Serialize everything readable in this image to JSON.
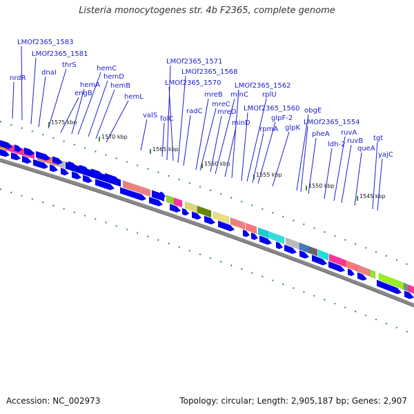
{
  "title": "Listeria monocytogenes str. 4b F2365, complete genome",
  "footer": {
    "accession": "Accession: NC_002973",
    "summary": "Topology: circular; Length: 2,905,187 bp; Genes: 2,907"
  },
  "scale_labels": [
    "1575 kbp",
    "1570 kbp",
    "1565 kbp",
    "1560 kbp",
    "1555 kbp",
    "1550 kbp",
    "1545 kbp"
  ],
  "gene_labels": [
    "LMOf2365_1583",
    "LMOf2365_1581",
    "nrdR",
    "dnaI",
    "thrS",
    "engB",
    "hemC",
    "hemA",
    "hemD",
    "hemB",
    "hemL",
    "valS",
    "folC",
    "LMOf2365_1571",
    "LMOf2365_1568",
    "LMOf2365_1570",
    "radC",
    "mreB",
    "mreC",
    "minC",
    "mreD",
    "minD",
    "LMOf2365_1562",
    "rplU",
    "LMOf2365_1560",
    "glpF-2",
    "rpmA",
    "glpK",
    "obgE",
    "LMOf2365_1554",
    "pheA",
    "ldh-2",
    "ruvA",
    "ruvB",
    "queA",
    "tgt",
    "yajC"
  ],
  "colors": {
    "gene_arrow": "#0000ee",
    "backbone": "#888888",
    "scale_tick": "#2f8f2f",
    "label": "#1a1acc"
  }
}
